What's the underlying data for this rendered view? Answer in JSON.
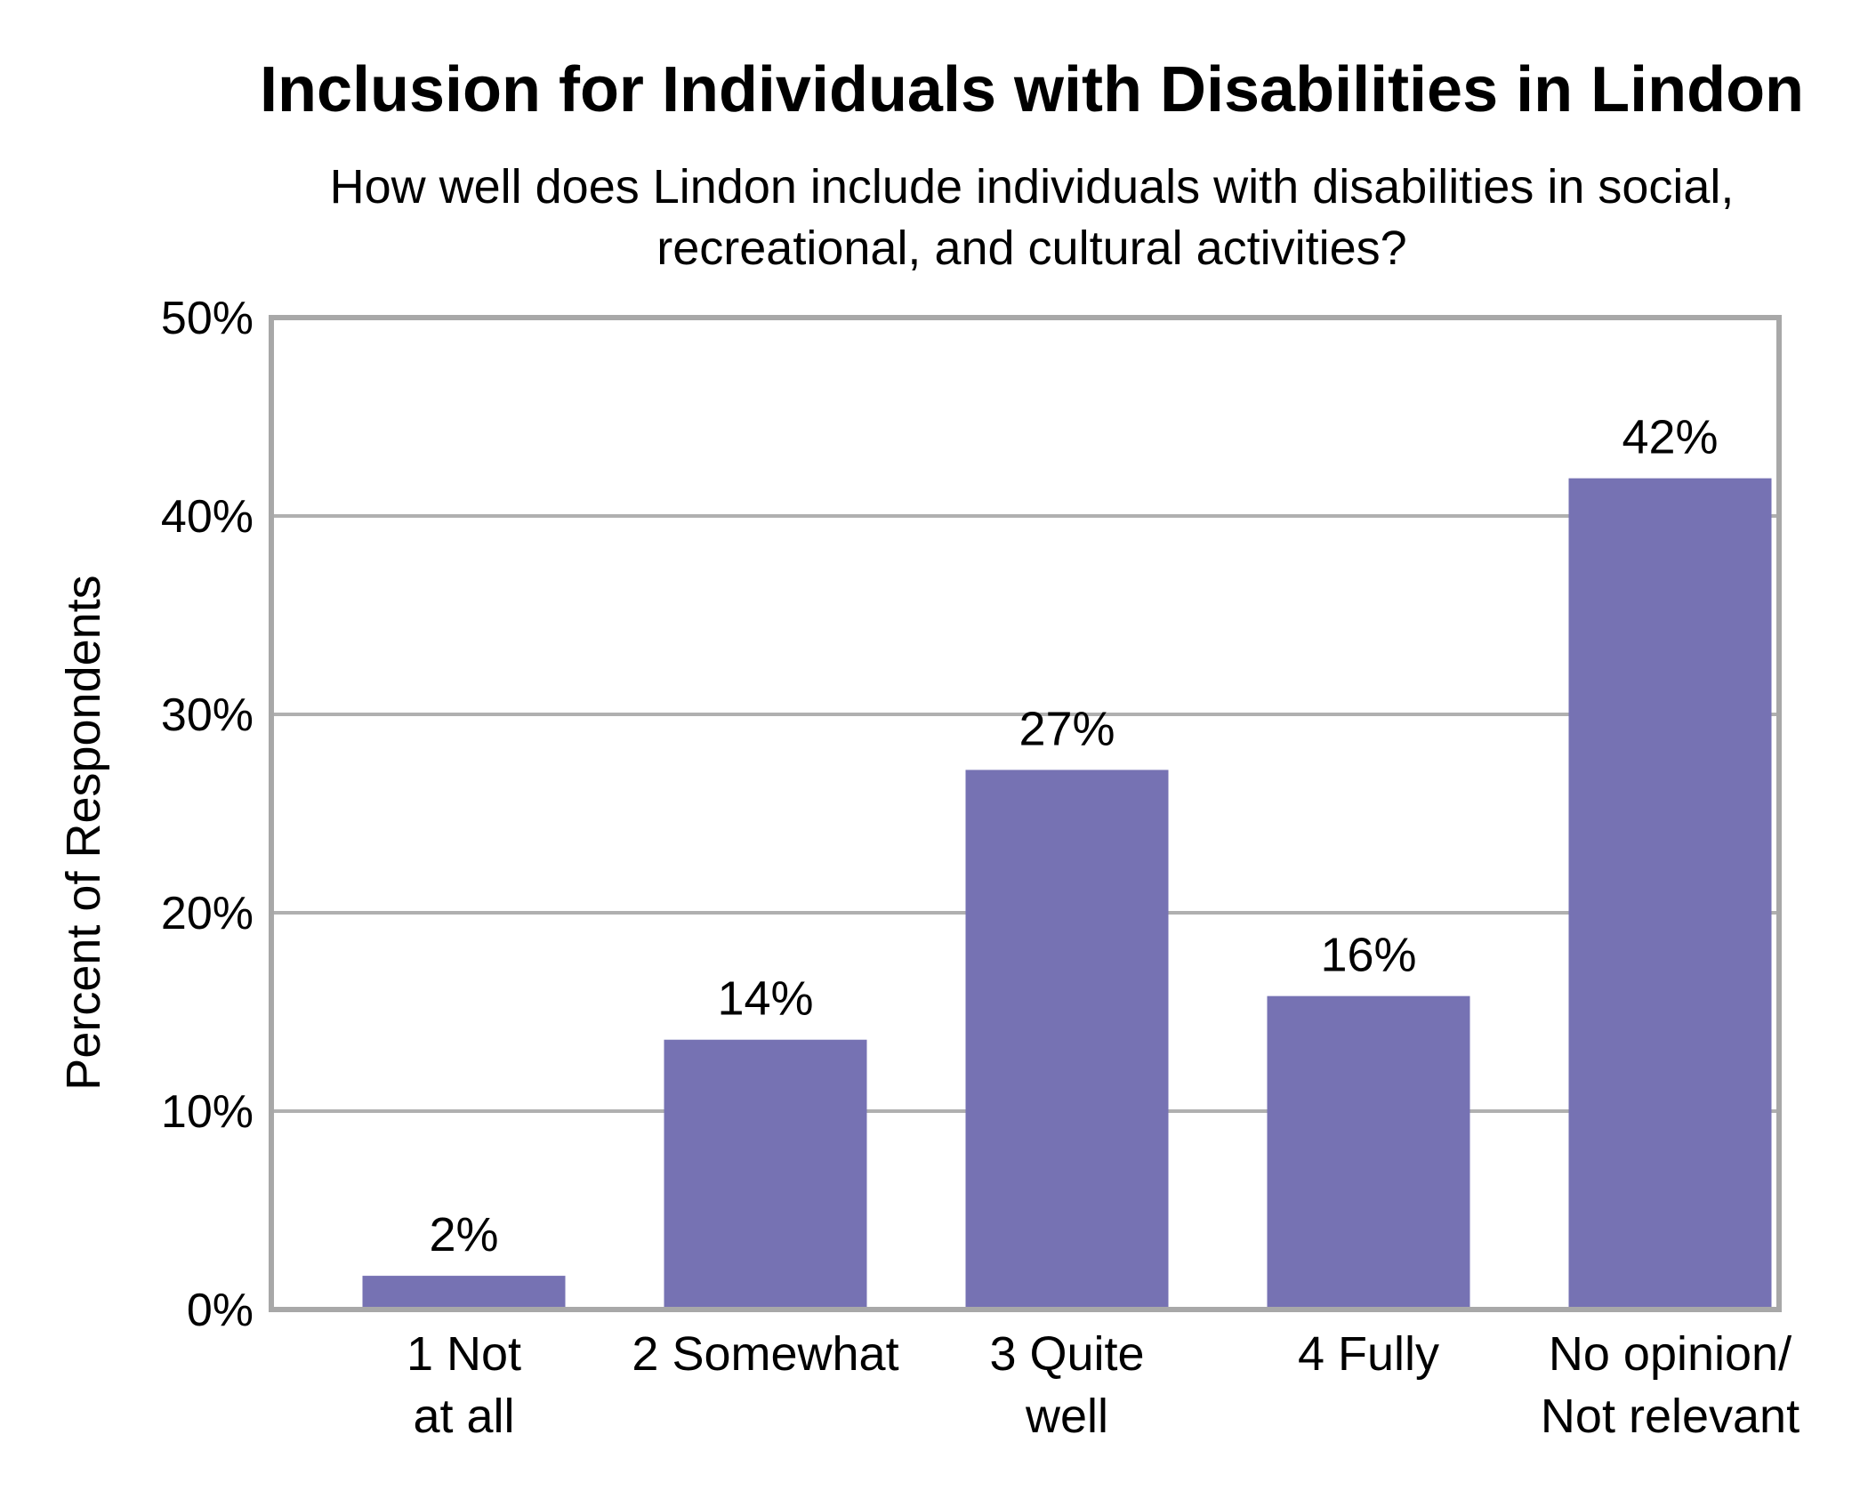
{
  "chart_data": {
    "type": "bar",
    "title": "Inclusion for Individuals with Disabilities in Lindon",
    "subtitle_lines": [
      "How well does Lindon include individuals with disabilities in social,",
      "recreational, and cultural activities?"
    ],
    "ylabel": "Percent of Respondents",
    "xlabel": "",
    "ylim": [
      0,
      50
    ],
    "yticks": [
      0,
      10,
      20,
      30,
      40,
      50
    ],
    "ytick_labels": [
      "0%",
      "10%",
      "20%",
      "30%",
      "40%",
      "50%"
    ],
    "grid": true,
    "categories": [
      [
        "1 Not",
        "at all"
      ],
      [
        "2 Somewhat"
      ],
      [
        "3 Quite",
        "well"
      ],
      [
        "4 Fully"
      ],
      [
        "No opinion/",
        "Not relevant"
      ]
    ],
    "values": [
      1.7,
      13.6,
      27.2,
      15.8,
      41.9
    ],
    "value_labels": [
      "2%",
      "14%",
      "27%",
      "16%",
      "42%"
    ],
    "bar_color": "#7672b3",
    "grid_color": "#b0b0b0",
    "frame_color": "#a8a8a8"
  }
}
